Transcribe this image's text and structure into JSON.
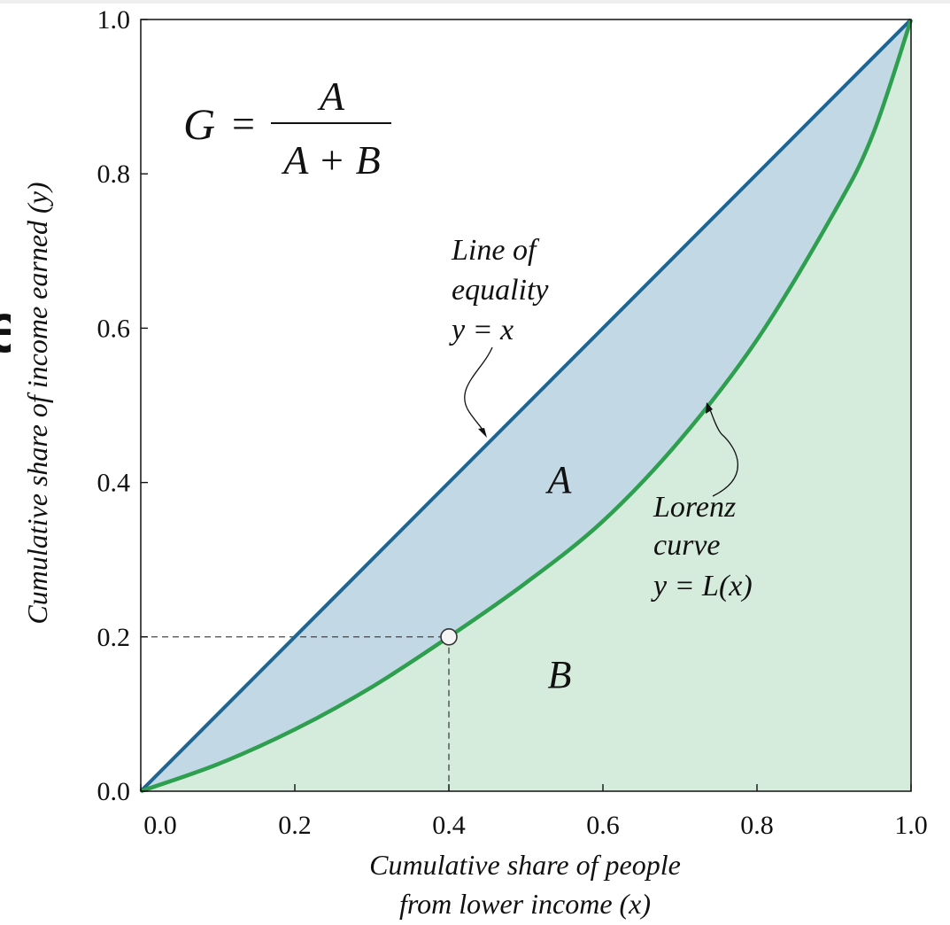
{
  "edge_fragment": "e",
  "chart_data": {
    "type": "line",
    "title": "",
    "xlabel_line1": "Cumulative share of people",
    "xlabel_line2": "from lower income (x)",
    "ylabel": "Cumulative share of income earned (y)",
    "xlim": [
      0,
      1
    ],
    "ylim": [
      0,
      1
    ],
    "xticks": [
      "0.0",
      "0.2",
      "0.4",
      "0.6",
      "0.8",
      "1.0"
    ],
    "yticks": [
      "0.0",
      "0.2",
      "0.4",
      "0.6",
      "0.8",
      "1.0"
    ],
    "grid": false,
    "series": [
      {
        "name": "Line of equality y = x",
        "color": "#1f6592",
        "x": [
          0,
          0.2,
          0.4,
          0.6,
          0.8,
          1.0
        ],
        "y": [
          0,
          0.2,
          0.4,
          0.6,
          0.8,
          1.0
        ]
      },
      {
        "name": "Lorenz curve y = L(x)",
        "color": "#2e9e4f",
        "x": [
          0,
          0.1,
          0.2,
          0.3,
          0.4,
          0.5,
          0.6,
          0.7,
          0.8,
          0.9,
          0.95,
          1.0
        ],
        "y": [
          0,
          0.035,
          0.08,
          0.135,
          0.2,
          0.27,
          0.35,
          0.455,
          0.585,
          0.75,
          0.85,
          1.0
        ]
      }
    ],
    "highlight_point": {
      "x": 0.4,
      "y": 0.2
    },
    "region_colors": {
      "A": "#c2d9e5",
      "B": "#d5ebdb"
    },
    "annotations": {
      "formula_G": "G",
      "formula_eq": "=",
      "formula_num": "A",
      "formula_den": "A + B",
      "region_A": "A",
      "region_B": "B",
      "equality_line1": "Line of",
      "equality_line2": "equality",
      "equality_line3": "y = x",
      "lorenz_line1": "Lorenz",
      "lorenz_line2": "curve",
      "lorenz_line3": "y = L(x)"
    }
  }
}
